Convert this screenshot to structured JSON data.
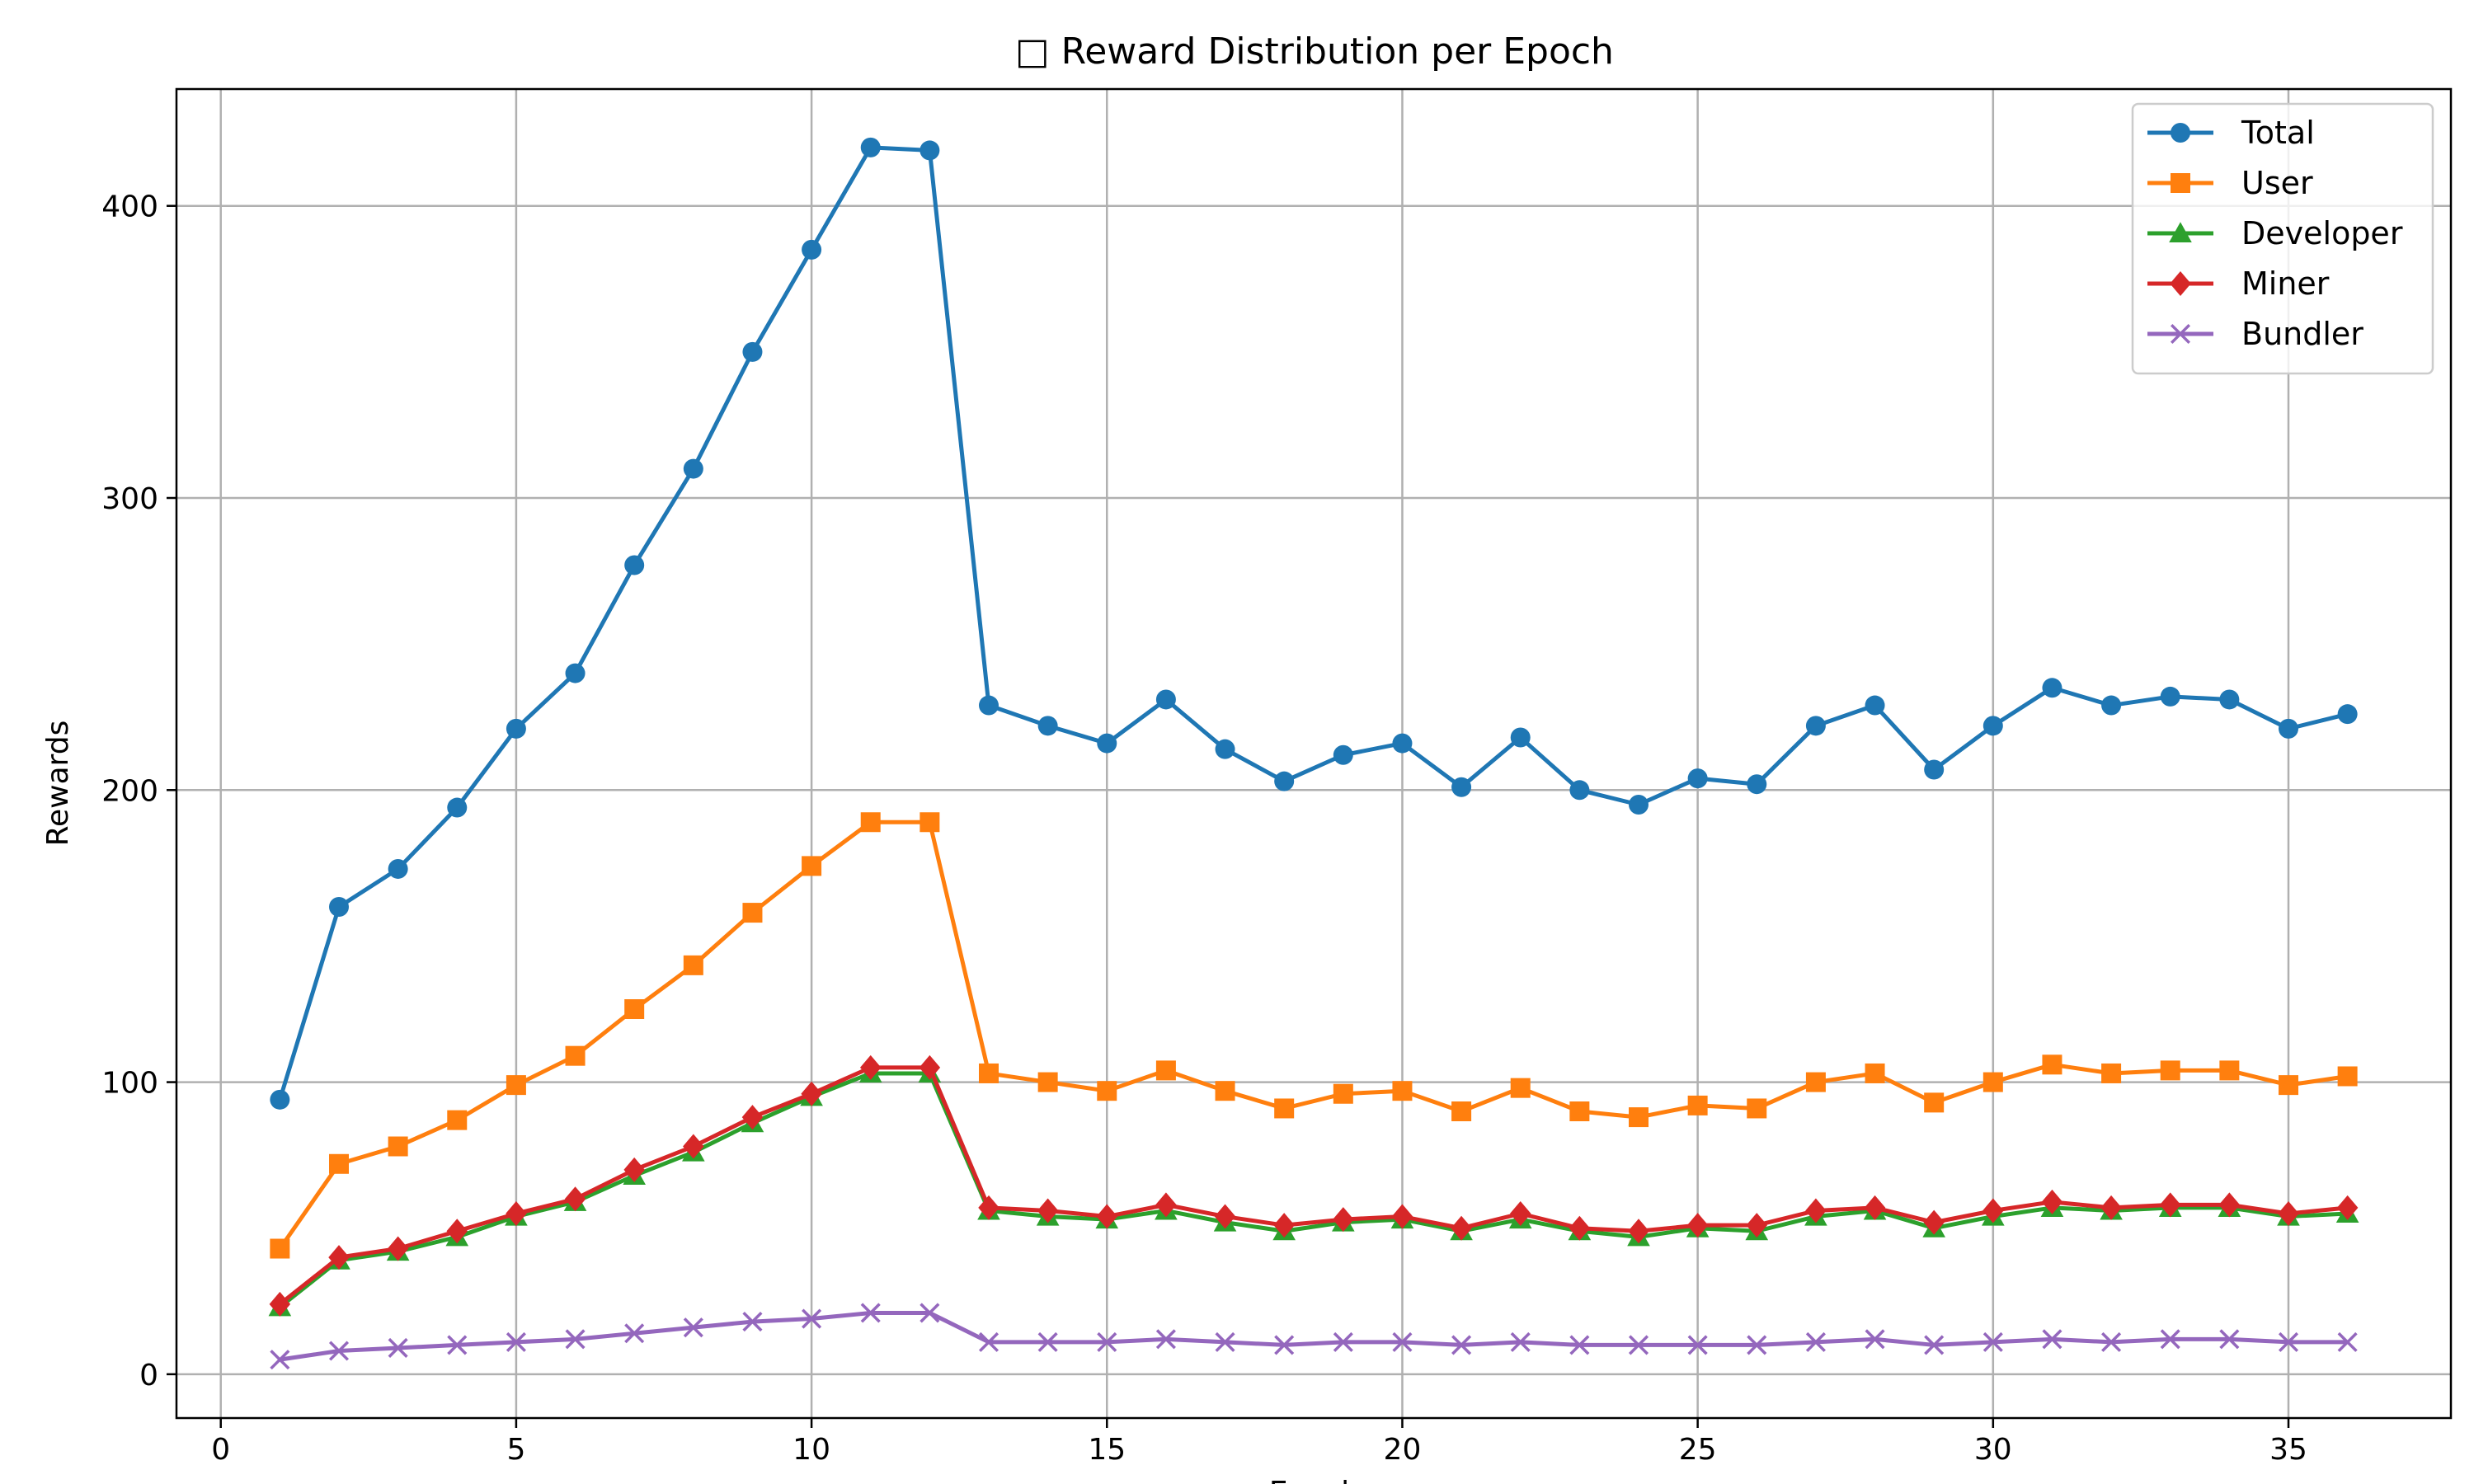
{
  "chart_data": {
    "type": "line",
    "title": "□ Reward Distribution per Epoch",
    "xlabel": "Epoch",
    "ylabel": "Rewards",
    "xlim": [
      -0.75,
      37.75
    ],
    "ylim": [
      -15,
      440
    ],
    "xticks": [
      0,
      5,
      10,
      15,
      20,
      25,
      30,
      35
    ],
    "yticks": [
      0,
      100,
      200,
      300,
      400
    ],
    "grid": true,
    "legend_position": "top-right",
    "x": [
      1,
      2,
      3,
      4,
      5,
      6,
      7,
      8,
      9,
      10,
      11,
      12,
      13,
      14,
      15,
      16,
      17,
      18,
      19,
      20,
      21,
      22,
      23,
      24,
      25,
      26,
      27,
      28,
      29,
      30,
      31,
      32,
      33,
      34,
      35,
      36
    ],
    "series": [
      {
        "name": "Total",
        "color": "#1f77b4",
        "marker": "circle",
        "values": [
          94,
          160,
          173,
          194,
          221,
          240,
          277,
          310,
          350,
          385,
          420,
          419,
          229,
          222,
          216,
          231,
          214,
          203,
          212,
          216,
          201,
          218,
          200,
          195,
          204,
          202,
          222,
          229,
          207,
          222,
          235,
          229,
          232,
          231,
          221,
          226
        ]
      },
      {
        "name": "User",
        "color": "#ff7f0e",
        "marker": "square",
        "values": [
          43,
          72,
          78,
          87,
          99,
          109,
          125,
          140,
          158,
          174,
          189,
          189,
          103,
          100,
          97,
          104,
          97,
          91,
          96,
          97,
          90,
          98,
          90,
          88,
          92,
          91,
          100,
          103,
          93,
          100,
          106,
          103,
          104,
          104,
          99,
          102
        ]
      },
      {
        "name": "Developer",
        "color": "#2ca02c",
        "marker": "triangle",
        "values": [
          23,
          39,
          42,
          47,
          54,
          59,
          68,
          76,
          86,
          95,
          103,
          103,
          56,
          54,
          53,
          56,
          52,
          49,
          52,
          53,
          49,
          53,
          49,
          47,
          50,
          49,
          54,
          56,
          50,
          54,
          57,
          56,
          57,
          57,
          54,
          55
        ]
      },
      {
        "name": "Miner",
        "color": "#d62728",
        "marker": "diamond",
        "values": [
          24,
          40,
          43,
          49,
          55,
          60,
          70,
          78,
          88,
          96,
          105,
          105,
          57,
          56,
          54,
          58,
          54,
          51,
          53,
          54,
          50,
          55,
          50,
          49,
          51,
          51,
          56,
          57,
          52,
          56,
          59,
          57,
          58,
          58,
          55,
          57
        ]
      },
      {
        "name": "Bundler",
        "color": "#9467bd",
        "marker": "x",
        "values": [
          5,
          8,
          9,
          10,
          11,
          12,
          14,
          16,
          18,
          19,
          21,
          21,
          11,
          11,
          11,
          12,
          11,
          10,
          11,
          11,
          10,
          11,
          10,
          10,
          10,
          10,
          11,
          12,
          10,
          11,
          12,
          11,
          12,
          12,
          11,
          11
        ]
      }
    ]
  }
}
